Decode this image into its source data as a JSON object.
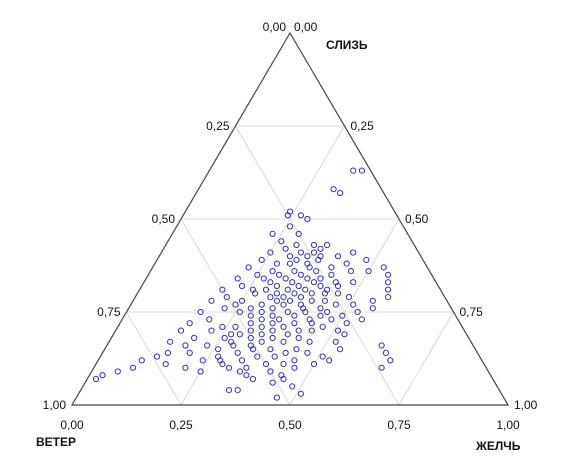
{
  "chart_data": {
    "type": "scatter",
    "subtype": "ternary",
    "grid": true,
    "colors": {
      "point": "#3333aa",
      "frame": "#444444",
      "grid": "#d4d4d4",
      "background": "#ffffff"
    },
    "vertices": {
      "top": "СЛИЗЬ",
      "left": "ВЕТЕР",
      "right": "ЖЕЛЧЬ"
    },
    "ticks": {
      "bottom": [
        "0,00",
        "0,25",
        "0,50",
        "0,75",
        "1,00"
      ],
      "left": [
        "1,00",
        "0,75",
        "0,50",
        "0,25",
        "0,00"
      ],
      "right": [
        "0,00",
        "0,25",
        "0,50",
        "0,75",
        "1,00"
      ]
    },
    "points_note": "each point is [СЛИЗЬ, ЖЕЛЧЬ]; ВЕТЕР = 1 - СЛИЗЬ - ЖЕЛЧЬ",
    "points": [
      [
        0.63,
        0.33
      ],
      [
        0.63,
        0.35
      ],
      [
        0.58,
        0.31
      ],
      [
        0.57,
        0.33
      ],
      [
        0.52,
        0.24
      ],
      [
        0.51,
        0.24
      ],
      [
        0.51,
        0.27
      ],
      [
        0.5,
        0.29
      ],
      [
        0.48,
        0.26
      ],
      [
        0.46,
        0.29
      ],
      [
        0.46,
        0.23
      ],
      [
        0.44,
        0.26
      ],
      [
        0.43,
        0.34
      ],
      [
        0.43,
        0.37
      ],
      [
        0.42,
        0.36
      ],
      [
        0.41,
        0.32
      ],
      [
        0.41,
        0.35
      ],
      [
        0.4,
        0.3
      ],
      [
        0.4,
        0.34
      ],
      [
        0.39,
        0.37
      ],
      [
        0.39,
        0.32
      ],
      [
        0.38,
        0.35
      ],
      [
        0.38,
        0.28
      ],
      [
        0.37,
        0.36
      ],
      [
        0.37,
        0.41
      ],
      [
        0.36,
        0.33
      ],
      [
        0.36,
        0.38
      ],
      [
        0.35,
        0.3
      ],
      [
        0.35,
        0.35
      ],
      [
        0.35,
        0.42
      ],
      [
        0.34,
        0.32
      ],
      [
        0.34,
        0.37
      ],
      [
        0.34,
        0.27
      ],
      [
        0.33,
        0.34
      ],
      [
        0.33,
        0.39
      ],
      [
        0.33,
        0.44
      ],
      [
        0.32,
        0.31
      ],
      [
        0.32,
        0.36
      ],
      [
        0.32,
        0.41
      ],
      [
        0.31,
        0.29
      ],
      [
        0.31,
        0.34
      ],
      [
        0.31,
        0.38
      ],
      [
        0.31,
        0.43
      ],
      [
        0.3,
        0.32
      ],
      [
        0.3,
        0.36
      ],
      [
        0.3,
        0.4
      ],
      [
        0.3,
        0.27
      ],
      [
        0.29,
        0.34
      ],
      [
        0.29,
        0.38
      ],
      [
        0.29,
        0.31
      ],
      [
        0.28,
        0.36
      ],
      [
        0.28,
        0.41
      ],
      [
        0.28,
        0.33
      ],
      [
        0.28,
        0.25
      ],
      [
        0.27,
        0.3
      ],
      [
        0.27,
        0.39
      ],
      [
        0.27,
        0.35
      ],
      [
        0.26,
        0.33
      ],
      [
        0.26,
        0.44
      ],
      [
        0.26,
        0.28
      ],
      [
        0.25,
        0.37
      ],
      [
        0.25,
        0.31
      ],
      [
        0.25,
        0.41
      ],
      [
        0.24,
        0.34
      ],
      [
        0.24,
        0.29
      ],
      [
        0.24,
        0.39
      ],
      [
        0.23,
        0.36
      ],
      [
        0.23,
        0.32
      ],
      [
        0.23,
        0.43
      ],
      [
        0.22,
        0.35
      ],
      [
        0.22,
        0.3
      ],
      [
        0.22,
        0.4
      ],
      [
        0.21,
        0.38
      ],
      [
        0.21,
        0.33
      ],
      [
        0.21,
        0.27
      ],
      [
        0.2,
        0.36
      ],
      [
        0.2,
        0.31
      ],
      [
        0.2,
        0.42
      ],
      [
        0.19,
        0.34
      ],
      [
        0.19,
        0.29
      ],
      [
        0.18,
        0.37
      ],
      [
        0.18,
        0.32
      ],
      [
        0.18,
        0.26
      ],
      [
        0.17,
        0.35
      ],
      [
        0.17,
        0.4
      ],
      [
        0.16,
        0.33
      ],
      [
        0.16,
        0.29
      ],
      [
        0.15,
        0.38
      ],
      [
        0.15,
        0.34
      ],
      [
        0.14,
        0.31
      ],
      [
        0.14,
        0.42
      ],
      [
        0.13,
        0.36
      ],
      [
        0.12,
        0.33
      ],
      [
        0.12,
        0.28
      ],
      [
        0.11,
        0.39
      ],
      [
        0.1,
        0.35
      ],
      [
        0.4,
        0.41
      ],
      [
        0.38,
        0.44
      ],
      [
        0.36,
        0.46
      ],
      [
        0.33,
        0.48
      ],
      [
        0.3,
        0.46
      ],
      [
        0.27,
        0.47
      ],
      [
        0.24,
        0.45
      ],
      [
        0.21,
        0.47
      ],
      [
        0.35,
        0.25
      ],
      [
        0.32,
        0.23
      ],
      [
        0.29,
        0.21
      ],
      [
        0.26,
        0.22
      ],
      [
        0.23,
        0.2
      ],
      [
        0.2,
        0.22
      ],
      [
        0.18,
        0.19
      ],
      [
        0.16,
        0.23
      ],
      [
        0.14,
        0.2
      ],
      [
        0.12,
        0.24
      ],
      [
        0.1,
        0.21
      ],
      [
        0.09,
        0.25
      ],
      [
        0.37,
        0.53
      ],
      [
        0.35,
        0.55
      ],
      [
        0.33,
        0.56
      ],
      [
        0.31,
        0.57
      ],
      [
        0.29,
        0.58
      ],
      [
        0.28,
        0.55
      ],
      [
        0.26,
        0.56
      ],
      [
        0.16,
        0.63
      ],
      [
        0.14,
        0.65
      ],
      [
        0.12,
        0.67
      ],
      [
        0.1,
        0.66
      ],
      [
        0.08,
        0.03
      ],
      [
        0.07,
        0.02
      ],
      [
        0.09,
        0.06
      ],
      [
        0.1,
        0.09
      ],
      [
        0.12,
        0.1
      ],
      [
        0.13,
        0.13
      ],
      [
        0.14,
        0.15
      ],
      [
        0.11,
        0.16
      ],
      [
        0.16,
        0.18
      ],
      [
        0.17,
        0.14
      ],
      [
        0.06,
        0.43
      ],
      [
        0.05,
        0.48
      ],
      [
        0.07,
        0.45
      ],
      [
        0.04,
        0.34
      ],
      [
        0.04,
        0.36
      ],
      [
        0.03,
        0.51
      ],
      [
        0.02,
        0.46
      ],
      [
        0.41,
        0.44
      ],
      [
        0.39,
        0.48
      ],
      [
        0.36,
        0.5
      ],
      [
        0.34,
        0.4
      ],
      [
        0.32,
        0.45
      ],
      [
        0.3,
        0.43
      ],
      [
        0.28,
        0.44
      ],
      [
        0.26,
        0.4
      ],
      [
        0.25,
        0.46
      ],
      [
        0.23,
        0.48
      ],
      [
        0.22,
        0.44
      ],
      [
        0.2,
        0.45
      ],
      [
        0.19,
        0.4
      ],
      [
        0.18,
        0.43
      ],
      [
        0.17,
        0.46
      ],
      [
        0.15,
        0.44
      ],
      [
        0.14,
        0.47
      ],
      [
        0.13,
        0.4
      ],
      [
        0.12,
        0.45
      ],
      [
        0.11,
        0.43
      ],
      [
        0.1,
        0.46
      ],
      [
        0.09,
        0.41
      ],
      [
        0.08,
        0.44
      ],
      [
        0.31,
        0.26
      ],
      [
        0.33,
        0.29
      ],
      [
        0.36,
        0.28
      ],
      [
        0.38,
        0.31
      ],
      [
        0.4,
        0.37
      ],
      [
        0.27,
        0.24
      ],
      [
        0.25,
        0.26
      ],
      [
        0.21,
        0.24
      ],
      [
        0.19,
        0.27
      ],
      [
        0.17,
        0.28
      ],
      [
        0.15,
        0.26
      ],
      [
        0.13,
        0.27
      ],
      [
        0.11,
        0.29
      ],
      [
        0.1,
        0.31
      ],
      [
        0.09,
        0.34
      ],
      [
        0.08,
        0.36
      ],
      [
        0.07,
        0.38
      ],
      [
        0.24,
        0.5
      ],
      [
        0.22,
        0.52
      ],
      [
        0.2,
        0.51
      ],
      [
        0.19,
        0.53
      ],
      [
        0.17,
        0.52
      ],
      [
        0.15,
        0.54
      ],
      [
        0.13,
        0.51
      ],
      [
        0.12,
        0.53
      ],
      [
        0.11,
        0.5
      ],
      [
        0.29,
        0.49
      ],
      [
        0.27,
        0.51
      ],
      [
        0.25,
        0.53
      ],
      [
        0.23,
        0.55
      ],
      [
        0.43,
        0.3
      ],
      [
        0.42,
        0.28
      ],
      [
        0.41,
        0.25
      ],
      [
        0.39,
        0.24
      ],
      [
        0.37,
        0.22
      ],
      [
        0.34,
        0.21
      ],
      [
        0.31,
        0.19
      ],
      [
        0.28,
        0.18
      ],
      [
        0.25,
        0.17
      ],
      [
        0.22,
        0.16
      ],
      [
        0.2,
        0.15
      ]
    ]
  }
}
